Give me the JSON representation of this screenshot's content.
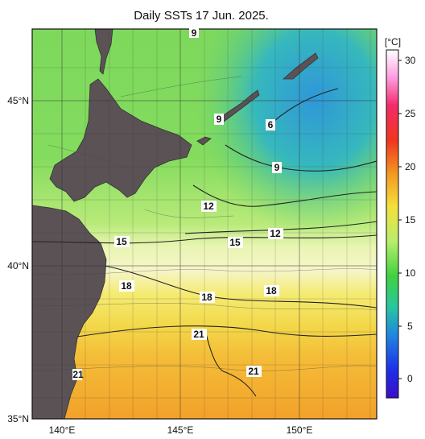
{
  "title": "Daily SSTs 17 Jun. 2025.",
  "colorbar": {
    "unit": "[°C]",
    "ticks": [
      "30",
      "25",
      "20",
      "15",
      "10",
      "5",
      "0"
    ]
  },
  "axes": {
    "lat_labels": [
      "45°N",
      "40°N",
      "35°N"
    ],
    "lon_labels": [
      "140°E",
      "145°E",
      "150°E"
    ]
  },
  "contour_labels": [
    "9",
    "9",
    "6",
    "9",
    "12",
    "12",
    "15",
    "15",
    "18",
    "18",
    "18",
    "21",
    "21",
    "21"
  ],
  "colors": {
    "land": "#5b5255",
    "warm": "#f4a92c",
    "yellow": "#f2e65a",
    "light": "#f6f6cc",
    "green": "#7bdc5b",
    "cyan": "#40c6b0",
    "blue": "#3ea5d8"
  }
}
